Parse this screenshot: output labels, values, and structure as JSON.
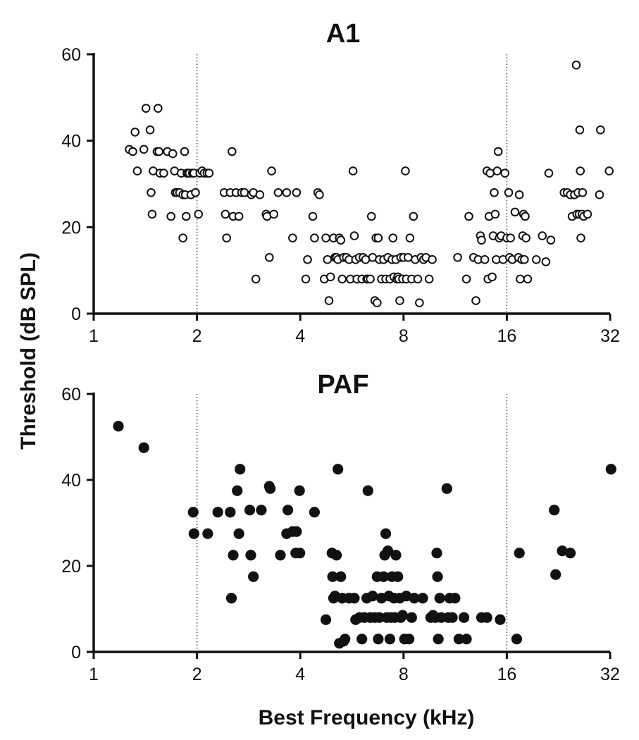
{
  "ylabel": "Threshold (dB SPL)",
  "xlabel": "Best Frequency (kHz)",
  "chart_data": [
    {
      "type": "scatter",
      "title": "A1",
      "marker": "open-circle",
      "xscale": "log2",
      "xlim": [
        1,
        32
      ],
      "ylim": [
        0,
        60
      ],
      "xticks": [
        1,
        2,
        4,
        8,
        16,
        32
      ],
      "yticks": [
        0,
        20,
        40,
        60
      ],
      "reference_lines_x": [
        2,
        16
      ],
      "points": [
        [
          1.27,
          38
        ],
        [
          1.3,
          37.5
        ],
        [
          1.32,
          42
        ],
        [
          1.34,
          33
        ],
        [
          1.4,
          38
        ],
        [
          1.42,
          47.5
        ],
        [
          1.46,
          42.5
        ],
        [
          1.47,
          28
        ],
        [
          1.48,
          23
        ],
        [
          1.49,
          33
        ],
        [
          1.53,
          37.5
        ],
        [
          1.54,
          47.5
        ],
        [
          1.55,
          37.5
        ],
        [
          1.56,
          32.5
        ],
        [
          1.6,
          32.5
        ],
        [
          1.64,
          37.5
        ],
        [
          1.68,
          22.5
        ],
        [
          1.7,
          37
        ],
        [
          1.72,
          33
        ],
        [
          1.73,
          28
        ],
        [
          1.75,
          28
        ],
        [
          1.78,
          28
        ],
        [
          1.8,
          32.5
        ],
        [
          1.82,
          27.5
        ],
        [
          1.84,
          37.5
        ],
        [
          1.85,
          27.5
        ],
        [
          1.86,
          22.5
        ],
        [
          1.87,
          32.5
        ],
        [
          1.88,
          32.5
        ],
        [
          1.9,
          32.5
        ],
        [
          1.92,
          27.5
        ],
        [
          1.94,
          32.5
        ],
        [
          1.96,
          32.5
        ],
        [
          1.98,
          28
        ],
        [
          2.02,
          23
        ],
        [
          2.04,
          32.5
        ],
        [
          2.07,
          33
        ],
        [
          2.1,
          32.5
        ],
        [
          2.14,
          32.5
        ],
        [
          2.17,
          32.5
        ],
        [
          1.82,
          17.5
        ],
        [
          2.4,
          28
        ],
        [
          2.42,
          23
        ],
        [
          2.44,
          17.5
        ],
        [
          2.5,
          28
        ],
        [
          2.53,
          37.5
        ],
        [
          2.55,
          22.5
        ],
        [
          2.6,
          28
        ],
        [
          2.65,
          22.5
        ],
        [
          2.7,
          28
        ],
        [
          2.75,
          28
        ],
        [
          2.88,
          27.5
        ],
        [
          2.92,
          28
        ],
        [
          2.97,
          8
        ],
        [
          3.05,
          27.5
        ],
        [
          3.18,
          23
        ],
        [
          3.2,
          22.5
        ],
        [
          3.25,
          13
        ],
        [
          3.3,
          33
        ],
        [
          3.35,
          23
        ],
        [
          3.45,
          28
        ],
        [
          3.65,
          28
        ],
        [
          3.8,
          17.5
        ],
        [
          3.9,
          28
        ],
        [
          4.15,
          8
        ],
        [
          4.2,
          12.5
        ],
        [
          4.35,
          22.5
        ],
        [
          4.4,
          17.5
        ],
        [
          4.5,
          28
        ],
        [
          4.55,
          27.5
        ],
        [
          4.7,
          8
        ],
        [
          4.75,
          17.5
        ],
        [
          4.8,
          12.5
        ],
        [
          4.85,
          3
        ],
        [
          4.9,
          8.5
        ],
        [
          5.0,
          17.5
        ],
        [
          5.05,
          13
        ],
        [
          5.1,
          13
        ],
        [
          5.15,
          12.5
        ],
        [
          5.2,
          17.5
        ],
        [
          5.25,
          17
        ],
        [
          5.3,
          8
        ],
        [
          5.35,
          13
        ],
        [
          5.45,
          13
        ],
        [
          5.55,
          12.5
        ],
        [
          5.6,
          8
        ],
        [
          5.7,
          33
        ],
        [
          5.75,
          18
        ],
        [
          5.8,
          12.5
        ],
        [
          5.85,
          8
        ],
        [
          5.95,
          13
        ],
        [
          6.05,
          8
        ],
        [
          6.1,
          13
        ],
        [
          6.2,
          12.5
        ],
        [
          6.25,
          8
        ],
        [
          6.3,
          8
        ],
        [
          6.4,
          8
        ],
        [
          6.45,
          22.5
        ],
        [
          6.5,
          13
        ],
        [
          6.6,
          3
        ],
        [
          6.65,
          17.5
        ],
        [
          6.7,
          2.5
        ],
        [
          6.75,
          17.5
        ],
        [
          6.8,
          12.5
        ],
        [
          6.9,
          8
        ],
        [
          7.0,
          12.5
        ],
        [
          7.1,
          8
        ],
        [
          7.2,
          13
        ],
        [
          7.3,
          8
        ],
        [
          7.4,
          12.5
        ],
        [
          7.45,
          17.5
        ],
        [
          7.5,
          8.5
        ],
        [
          7.6,
          12.5
        ],
        [
          7.65,
          8
        ],
        [
          7.7,
          8.5
        ],
        [
          7.75,
          8
        ],
        [
          7.8,
          3
        ],
        [
          7.85,
          13
        ],
        [
          7.95,
          8
        ],
        [
          8.0,
          13
        ],
        [
          8.1,
          33
        ],
        [
          8.15,
          8
        ],
        [
          8.25,
          13
        ],
        [
          8.35,
          17.5
        ],
        [
          8.45,
          8
        ],
        [
          8.55,
          22.5
        ],
        [
          8.65,
          12.5
        ],
        [
          8.8,
          8
        ],
        [
          8.9,
          2.5
        ],
        [
          9.0,
          13
        ],
        [
          9.15,
          12.5
        ],
        [
          9.3,
          13
        ],
        [
          9.5,
          8
        ],
        [
          9.7,
          12.5
        ],
        [
          11.5,
          13
        ],
        [
          12.2,
          8
        ],
        [
          12.4,
          22.5
        ],
        [
          12.8,
          13
        ],
        [
          13.0,
          3
        ],
        [
          13.2,
          12.5
        ],
        [
          13.4,
          18
        ],
        [
          13.5,
          17
        ],
        [
          13.8,
          12.5
        ],
        [
          14.0,
          33
        ],
        [
          14.1,
          8
        ],
        [
          14.2,
          22.5
        ],
        [
          14.3,
          32.5
        ],
        [
          14.5,
          8.5
        ],
        [
          14.6,
          18
        ],
        [
          14.7,
          28
        ],
        [
          14.8,
          23
        ],
        [
          14.9,
          12.5
        ],
        [
          15.0,
          33
        ],
        [
          15.1,
          37.5
        ],
        [
          15.2,
          17.5
        ],
        [
          15.4,
          18
        ],
        [
          15.6,
          12.5
        ],
        [
          15.8,
          32.5
        ],
        [
          16.0,
          17.5
        ],
        [
          16.2,
          28
        ],
        [
          16.3,
          13
        ],
        [
          16.4,
          17.5
        ],
        [
          16.6,
          12.5
        ],
        [
          16.9,
          23.5
        ],
        [
          17.3,
          13
        ],
        [
          17.4,
          27.5
        ],
        [
          17.5,
          8
        ],
        [
          17.7,
          12.5
        ],
        [
          17.8,
          18
        ],
        [
          17.9,
          23
        ],
        [
          18.0,
          12.5
        ],
        [
          18.1,
          22.5
        ],
        [
          18.2,
          17.5
        ],
        [
          18.4,
          8
        ],
        [
          19.5,
          12.5
        ],
        [
          20.3,
          18
        ],
        [
          20.8,
          12
        ],
        [
          21.2,
          32.5
        ],
        [
          21.5,
          17
        ],
        [
          23.5,
          28
        ],
        [
          24.0,
          28
        ],
        [
          24.5,
          27.5
        ],
        [
          24.8,
          22.5
        ],
        [
          25.2,
          27.5
        ],
        [
          25.5,
          57.5
        ],
        [
          25.6,
          23
        ],
        [
          25.8,
          28
        ],
        [
          26.0,
          23
        ],
        [
          26.1,
          42.5
        ],
        [
          26.2,
          33
        ],
        [
          26.3,
          17.5
        ],
        [
          26.5,
          23
        ],
        [
          26.6,
          28
        ],
        [
          26.8,
          22.5
        ],
        [
          27.5,
          23
        ],
        [
          29.8,
          27.5
        ],
        [
          30.0,
          42.5
        ],
        [
          31.8,
          33
        ]
      ]
    },
    {
      "type": "scatter",
      "title": "PAF",
      "marker": "filled-circle",
      "xscale": "log2",
      "xlim": [
        1,
        32
      ],
      "ylim": [
        0,
        60
      ],
      "xticks": [
        1,
        2,
        4,
        8,
        16,
        32
      ],
      "yticks": [
        0,
        20,
        40,
        60
      ],
      "reference_lines_x": [
        2,
        16
      ],
      "points": [
        [
          1.18,
          52.5
        ],
        [
          1.4,
          47.5
        ],
        [
          1.95,
          32.5
        ],
        [
          1.96,
          27.5
        ],
        [
          2.15,
          27.5
        ],
        [
          2.3,
          32.5
        ],
        [
          2.5,
          32.5
        ],
        [
          2.52,
          12.5
        ],
        [
          2.55,
          22.5
        ],
        [
          2.62,
          37.5
        ],
        [
          2.65,
          27.5
        ],
        [
          2.67,
          42.5
        ],
        [
          2.85,
          33
        ],
        [
          2.87,
          22.5
        ],
        [
          2.92,
          17.5
        ],
        [
          3.08,
          33
        ],
        [
          3.25,
          38.5
        ],
        [
          3.27,
          38
        ],
        [
          3.5,
          22.5
        ],
        [
          3.65,
          27.5
        ],
        [
          3.68,
          33
        ],
        [
          3.8,
          28
        ],
        [
          3.88,
          23
        ],
        [
          3.9,
          28
        ],
        [
          3.98,
          37.5
        ],
        [
          3.99,
          23
        ],
        [
          4.4,
          32.5
        ],
        [
          4.75,
          7.5
        ],
        [
          4.95,
          23
        ],
        [
          4.97,
          17.5
        ],
        [
          5.0,
          12.5
        ],
        [
          5.05,
          13
        ],
        [
          5.1,
          22.5
        ],
        [
          5.15,
          42.5
        ],
        [
          5.2,
          2
        ],
        [
          5.25,
          17.5
        ],
        [
          5.3,
          12.5
        ],
        [
          5.35,
          2.5
        ],
        [
          5.4,
          3
        ],
        [
          5.55,
          12.5
        ],
        [
          5.75,
          12.5
        ],
        [
          5.8,
          7.5
        ],
        [
          5.95,
          8
        ],
        [
          6.05,
          3
        ],
        [
          6.15,
          8
        ],
        [
          6.25,
          12.5
        ],
        [
          6.3,
          37.5
        ],
        [
          6.4,
          8
        ],
        [
          6.5,
          13
        ],
        [
          6.6,
          8
        ],
        [
          6.7,
          17.5
        ],
        [
          6.75,
          3
        ],
        [
          6.8,
          8
        ],
        [
          6.9,
          12.5
        ],
        [
          7.0,
          17.5
        ],
        [
          7.05,
          22.5
        ],
        [
          7.1,
          27.5
        ],
        [
          7.15,
          8
        ],
        [
          7.2,
          23.5
        ],
        [
          7.25,
          13
        ],
        [
          7.3,
          3
        ],
        [
          7.35,
          8
        ],
        [
          7.4,
          17.5
        ],
        [
          7.5,
          12.5
        ],
        [
          7.55,
          8
        ],
        [
          7.6,
          22.5
        ],
        [
          7.7,
          17.5
        ],
        [
          7.8,
          12.5
        ],
        [
          7.85,
          8
        ],
        [
          7.95,
          8.5
        ],
        [
          8.05,
          3
        ],
        [
          8.15,
          13
        ],
        [
          8.3,
          3
        ],
        [
          8.45,
          8
        ],
        [
          8.6,
          12.5
        ],
        [
          9.1,
          12.5
        ],
        [
          9.6,
          8
        ],
        [
          9.75,
          8.5
        ],
        [
          9.9,
          8
        ],
        [
          10.0,
          23
        ],
        [
          10.05,
          17.5
        ],
        [
          10.1,
          3
        ],
        [
          10.2,
          12.5
        ],
        [
          10.3,
          8
        ],
        [
          10.7,
          38
        ],
        [
          10.8,
          8
        ],
        [
          10.9,
          12.5
        ],
        [
          11.1,
          8
        ],
        [
          11.3,
          12.5
        ],
        [
          11.6,
          3
        ],
        [
          12.0,
          8
        ],
        [
          12.2,
          3
        ],
        [
          13.5,
          8
        ],
        [
          14.0,
          8
        ],
        [
          15.3,
          7.5
        ],
        [
          17.1,
          3
        ],
        [
          17.4,
          23
        ],
        [
          22.0,
          33
        ],
        [
          22.2,
          18
        ],
        [
          23.2,
          23.5
        ],
        [
          24.5,
          23
        ],
        [
          32.2,
          42.5
        ]
      ]
    }
  ]
}
